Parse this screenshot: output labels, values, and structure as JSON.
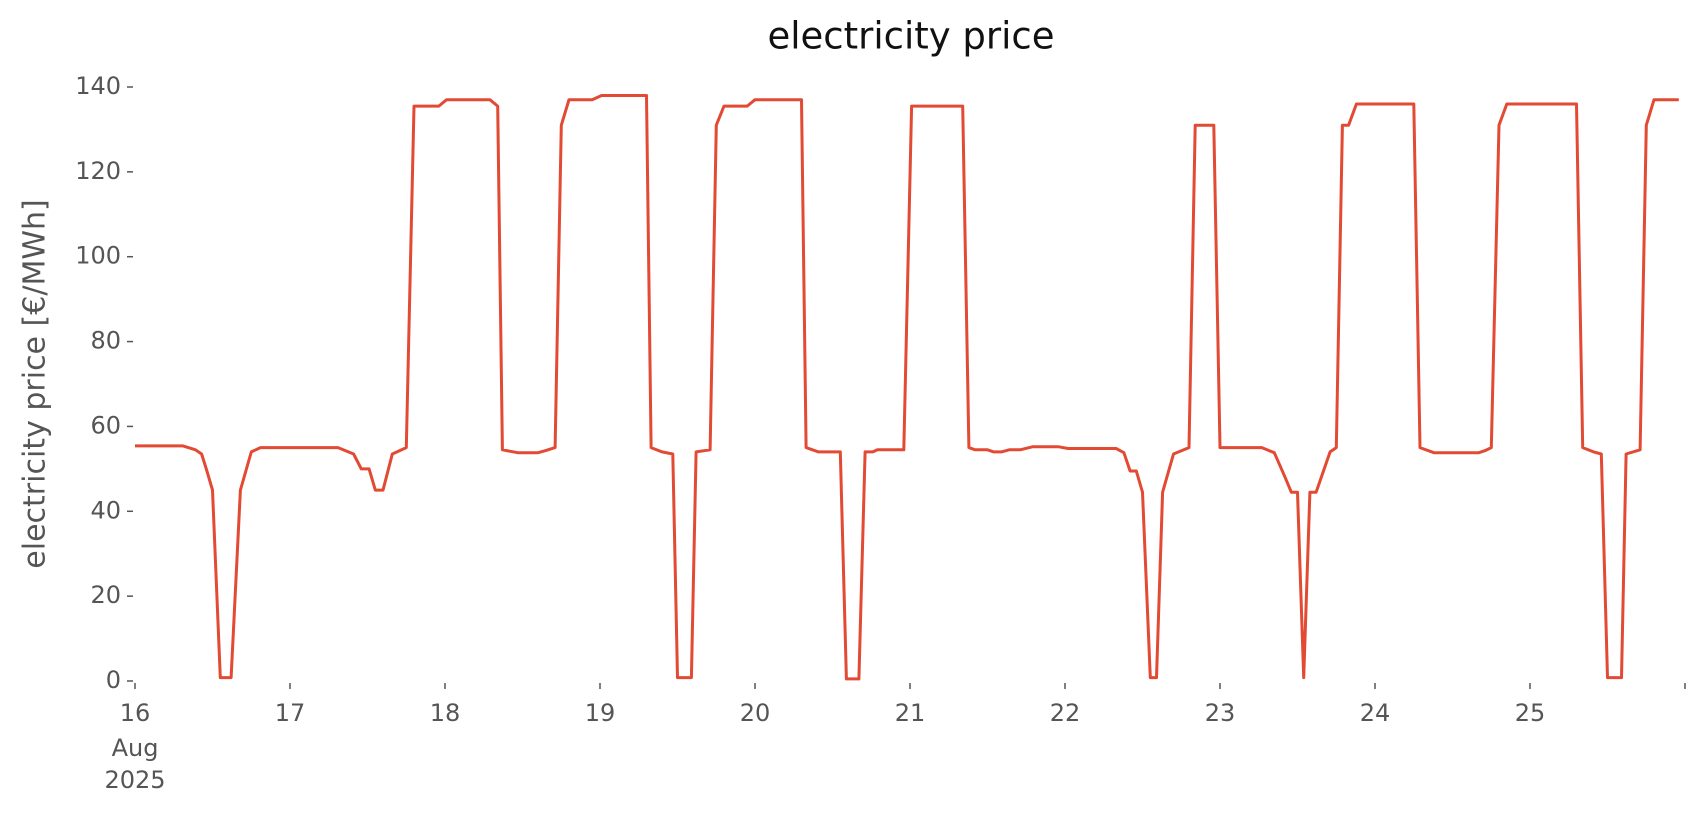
{
  "chart_data": {
    "type": "line",
    "title": "electricity price",
    "ylabel": "electricity price [€/MWh]",
    "xlim": [
      16,
      26
    ],
    "ylim": [
      0,
      140
    ],
    "xticks": [
      {
        "value": 16,
        "label": "16"
      },
      17,
      18,
      19,
      20,
      21,
      22,
      23,
      24,
      25,
      {
        "value": 26,
        "label": null
      }
    ],
    "xtick_sublabels": [
      "Aug",
      "2025"
    ],
    "yticks": [
      0,
      20,
      40,
      60,
      80,
      100,
      120,
      140
    ],
    "grid": false,
    "series": [
      {
        "name": "electricity price",
        "color": "#E24A33",
        "x": [
          16.0,
          16.31,
          16.39,
          16.43,
          16.46,
          16.5,
          16.55,
          16.62,
          16.68,
          16.75,
          16.81,
          17.31,
          17.41,
          17.46,
          17.51,
          17.55,
          17.6,
          17.66,
          17.75,
          17.8,
          17.96,
          18.01,
          18.29,
          18.34,
          18.37,
          18.47,
          18.6,
          18.65,
          18.71,
          18.75,
          18.8,
          18.95,
          19.01,
          19.3,
          19.33,
          19.4,
          19.47,
          19.5,
          19.59,
          19.62,
          19.71,
          19.75,
          19.8,
          19.95,
          20.0,
          20.3,
          20.33,
          20.41,
          20.55,
          20.59,
          20.67,
          20.71,
          20.76,
          20.79,
          20.96,
          21.01,
          21.34,
          21.38,
          21.42,
          21.5,
          21.54,
          21.59,
          21.64,
          21.71,
          21.79,
          21.96,
          22.02,
          22.33,
          22.38,
          22.42,
          22.46,
          22.5,
          22.55,
          22.59,
          22.63,
          22.7,
          22.8,
          22.84,
          22.96,
          23.0,
          23.27,
          23.35,
          23.42,
          23.46,
          23.5,
          23.54,
          23.58,
          23.62,
          23.71,
          23.75,
          23.79,
          23.83,
          23.88,
          24.25,
          24.29,
          24.38,
          24.67,
          24.71,
          24.75,
          24.8,
          24.85,
          25.3,
          25.34,
          25.41,
          25.46,
          25.5,
          25.59,
          25.62,
          25.71,
          25.75,
          25.8,
          25.96
        ],
        "values": [
          55.4,
          55.4,
          54.5,
          53.5,
          50,
          45,
          0.8,
          0.8,
          45,
          54,
          55,
          55,
          53.5,
          50,
          50,
          45,
          45,
          53.5,
          55,
          135.5,
          135.5,
          137,
          137,
          135.5,
          54.5,
          53.8,
          53.8,
          54.3,
          55,
          131,
          137,
          137,
          138,
          138,
          55,
          54,
          53.5,
          0.8,
          0.8,
          54,
          54.5,
          131,
          135.5,
          135.5,
          137,
          137,
          55,
          54,
          54,
          0.5,
          0.5,
          54,
          54,
          54.5,
          54.5,
          135.5,
          135.5,
          55,
          54.5,
          54.5,
          54,
          54,
          54.5,
          54.5,
          55.2,
          55.2,
          54.8,
          54.8,
          53.8,
          49.5,
          49.5,
          44.5,
          0.8,
          0.8,
          44.5,
          53.5,
          55,
          131,
          131,
          55,
          55,
          53.8,
          48,
          44.5,
          44.5,
          0.8,
          44.5,
          44.5,
          54,
          55,
          131,
          131,
          136,
          136,
          55,
          53.8,
          53.8,
          54.3,
          55,
          131,
          136,
          136,
          55,
          54,
          53.5,
          0.8,
          0.8,
          53.5,
          54.5,
          131,
          137,
          137
        ]
      }
    ]
  }
}
